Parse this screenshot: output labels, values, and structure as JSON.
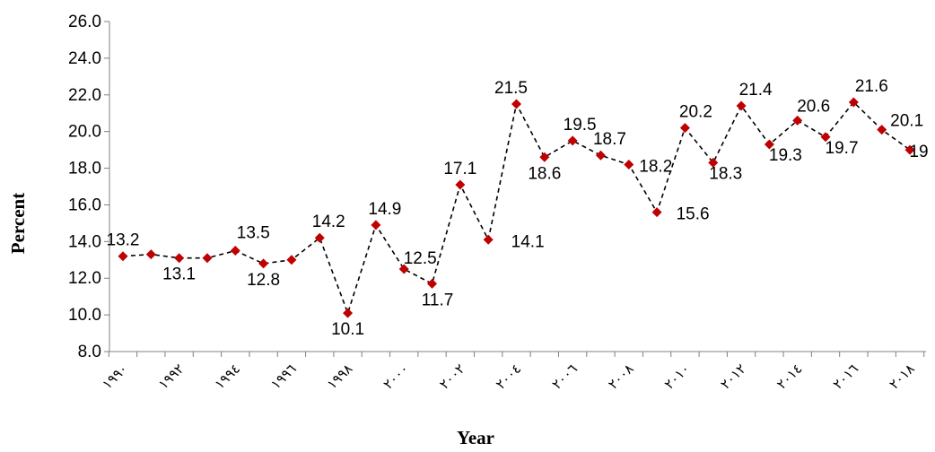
{
  "chart_data": {
    "type": "line",
    "xlabel": "Year",
    "ylabel": "Percent",
    "ylim": [
      8.0,
      26.0
    ],
    "yticks": [
      "8.0",
      "10.0",
      "12.0",
      "14.0",
      "16.0",
      "18.0",
      "20.0",
      "22.0",
      "24.0",
      "26.0"
    ],
    "x_tick_labels": [
      "١٩٩٠",
      "١٩٩٢",
      "١٩٩٤",
      "١٩٩٦",
      "١٩٩٨",
      "٢٠٠٠",
      "٢٠٠٢",
      "٢٠٠٤",
      "٢٠٠٦",
      "٢٠٠٨",
      "٢٠١٠",
      "٢٠١٢",
      "٢٠١٤",
      "٢٠١٦",
      "٢٠١٨"
    ],
    "x": [
      1990,
      1991,
      1992,
      1993,
      1994,
      1995,
      1996,
      1997,
      1998,
      1999,
      2000,
      2001,
      2002,
      2003,
      2004,
      2005,
      2006,
      2007,
      2008,
      2009,
      2010,
      2011,
      2012,
      2013,
      2014,
      2015,
      2016,
      2017,
      2018
    ],
    "values": [
      13.2,
      13.3,
      13.1,
      13.1,
      13.5,
      12.8,
      13.0,
      14.2,
      10.1,
      14.9,
      12.5,
      11.7,
      17.1,
      14.1,
      21.5,
      18.6,
      19.5,
      18.7,
      18.2,
      15.6,
      20.2,
      18.3,
      21.4,
      19.3,
      20.6,
      19.7,
      21.6,
      20.1,
      19.0
    ],
    "data_labels": [
      {
        "year": 1990,
        "text": "13.2"
      },
      {
        "year": 1992,
        "text": "13.1"
      },
      {
        "year": 1994,
        "text": "13.5"
      },
      {
        "year": 1995,
        "text": "12.8"
      },
      {
        "year": 1997,
        "text": "14.2"
      },
      {
        "year": 1998,
        "text": "10.1"
      },
      {
        "year": 1999,
        "text": "14.9"
      },
      {
        "year": 2000,
        "text": "12.5"
      },
      {
        "year": 2001,
        "text": "11.7"
      },
      {
        "year": 2002,
        "text": "17.1"
      },
      {
        "year": 2003,
        "text": "14.1"
      },
      {
        "year": 2004,
        "text": "21.5"
      },
      {
        "year": 2005,
        "text": "18.6"
      },
      {
        "year": 2006,
        "text": "19.5"
      },
      {
        "year": 2007,
        "text": "18.7"
      },
      {
        "year": 2008,
        "text": "18.2"
      },
      {
        "year": 2009,
        "text": "15.6"
      },
      {
        "year": 2010,
        "text": "20.2"
      },
      {
        "year": 2011,
        "text": "18.3"
      },
      {
        "year": 2012,
        "text": "21.4"
      },
      {
        "year": 2013,
        "text": "19.3"
      },
      {
        "year": 2014,
        "text": "20.6"
      },
      {
        "year": 2015,
        "text": "19.7"
      },
      {
        "year": 2016,
        "text": "21.6"
      },
      {
        "year": 2017,
        "text": "20.1"
      },
      {
        "year": 2018,
        "text": "19"
      }
    ],
    "line_style": "dashed",
    "line_color": "#000000",
    "marker": "diamond",
    "marker_color": "#C00000",
    "grid": false,
    "legend": "none"
  }
}
